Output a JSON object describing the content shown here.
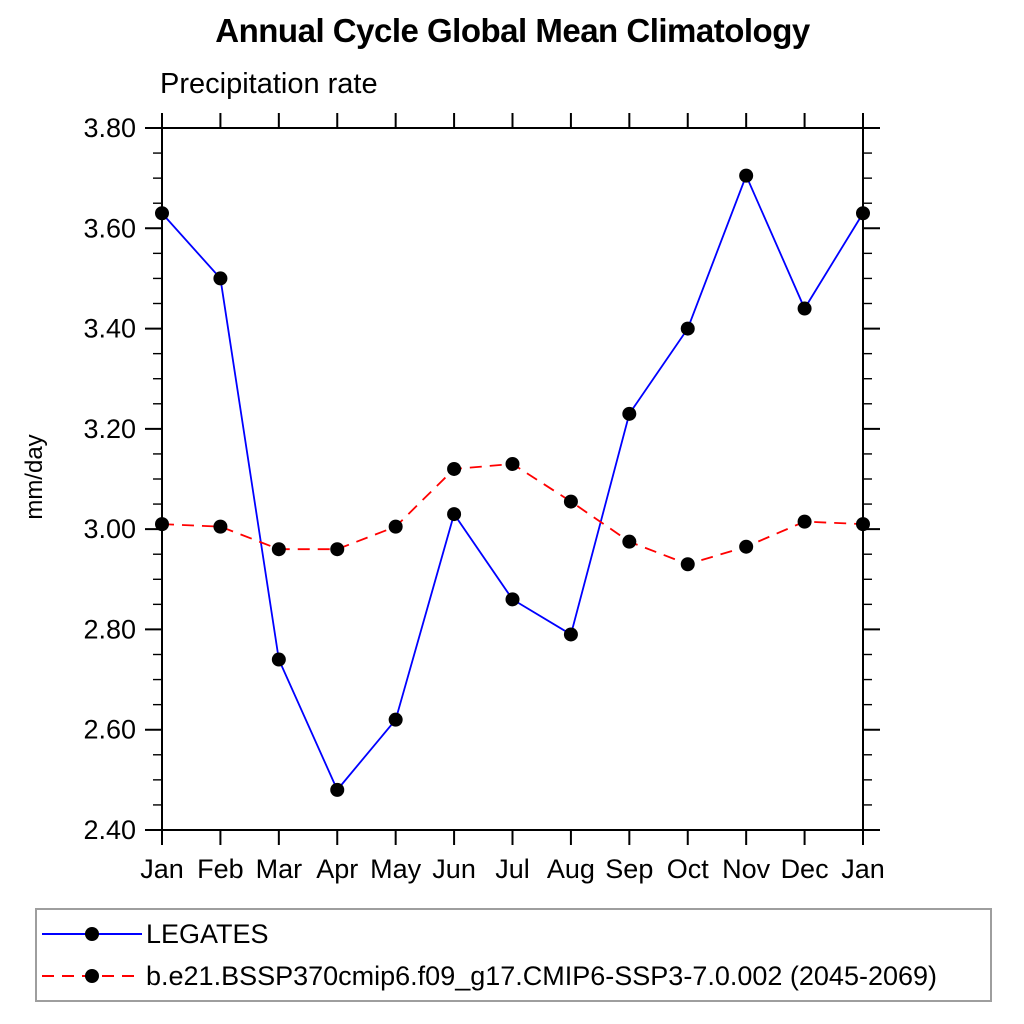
{
  "page": {
    "background_color": "#ffffff",
    "text_color": "#000000",
    "legend_border_color": "#9e9e9e",
    "axis_color": "#000000"
  },
  "chart_data": {
    "type": "line",
    "title": "Annual Cycle Global Mean Climatology",
    "subtitle": "Precipitation rate",
    "ylabel": "mm/day",
    "xlabel": "",
    "ylim": [
      2.4,
      3.8
    ],
    "ytick_step": 0.2,
    "ytick_minor_step": 0.05,
    "ytick_labels": [
      "2.40",
      "2.60",
      "2.80",
      "3.00",
      "3.20",
      "3.40",
      "3.60",
      "3.80"
    ],
    "grid": false,
    "frame": "box",
    "legend_position": "bottom-left-box",
    "categories": [
      "Jan",
      "Feb",
      "Mar",
      "Apr",
      "May",
      "Jun",
      "Jul",
      "Aug",
      "Sep",
      "Oct",
      "Nov",
      "Dec",
      "Jan"
    ],
    "series": [
      {
        "name": "LEGATES",
        "line_color": "#0000ff",
        "line_style": "solid",
        "marker": "filled-circle",
        "marker_color": "#000000",
        "values": [
          3.63,
          3.5,
          2.74,
          2.48,
          2.62,
          3.03,
          2.86,
          2.79,
          3.23,
          3.4,
          3.705,
          3.44,
          3.63
        ]
      },
      {
        "name": "b.e21.BSSP370cmip6.f09_g17.CMIP6-SSP3-7.0.002 (2045-2069)",
        "line_color": "#ff0000",
        "line_style": "dashed",
        "marker": "filled-circle",
        "marker_color": "#000000",
        "values": [
          3.01,
          3.005,
          2.96,
          2.96,
          3.005,
          3.12,
          3.13,
          3.055,
          2.975,
          2.93,
          2.965,
          3.015,
          3.01
        ]
      }
    ]
  }
}
